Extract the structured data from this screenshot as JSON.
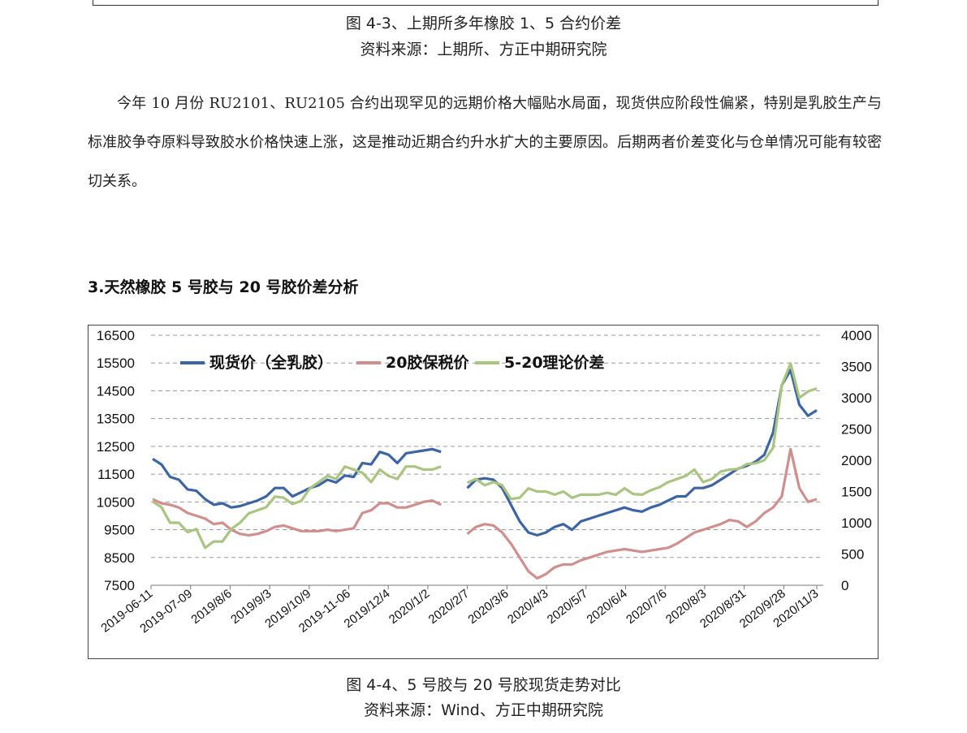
{
  "prev_figure": {
    "caption": "图  4-3、上期所多年橡胶 1、5 合约价差",
    "source": "资料来源：上期所、方正中期研究院"
  },
  "paragraph": "今年 10 月份 RU2101、RU2105 合约出现罕见的远期价格大幅贴水局面，现货供应阶段性偏紧，特别是乳胶生产与标准胶争夺原料导致胶水价格快速上涨，这是推动近期合约升水扩大的主要原因。后期两者价差变化与仓单情况可能有较密切关系。",
  "section_title": "3.天然橡胶 5 号胶与 20 号胶价差分析",
  "figure": {
    "caption": "图 4-4、5 号胶与 20 号胶现货走势对比",
    "source": "资料来源：Wind、方正中期研究院"
  },
  "chart_data": {
    "type": "line",
    "title": "",
    "y_left": {
      "min": 7500,
      "max": 16500,
      "ticks": [
        7500,
        8500,
        9500,
        10500,
        11500,
        12500,
        13500,
        14500,
        15500,
        16500
      ]
    },
    "y_right": {
      "min": 0,
      "max": 4000,
      "ticks": [
        0,
        500,
        1000,
        1500,
        2000,
        2500,
        3000,
        3500,
        4000
      ]
    },
    "x_ticks": [
      "2019-06-11",
      "2019-07-09",
      "2019/8/6",
      "2019/9/3",
      "2019/10/9",
      "2019-11-06",
      "2019/12/4",
      "2020/1/2",
      "2020/2/7",
      "2020/3/6",
      "2020/4/3",
      "2020/5/7",
      "2020/6/4",
      "2020/7/6",
      "2020/8/3",
      "2020/8/31",
      "2020/9/28",
      "2020/11/3"
    ],
    "legend_position": "top-left",
    "grid": "horizontal dashed",
    "series": [
      {
        "name": "现货价（全乳胶）",
        "axis": "left",
        "color": "#3b65a5",
        "values": [
          12050,
          11850,
          11400,
          11300,
          10950,
          10900,
          10600,
          10400,
          10450,
          10300,
          10350,
          10450,
          10550,
          10700,
          11000,
          11000,
          10700,
          10850,
          11000,
          11100,
          11300,
          11200,
          11450,
          11400,
          11900,
          11850,
          12300,
          12200,
          11900,
          12250,
          12300,
          12350,
          12400,
          12300,
          null,
          null,
          11000,
          11300,
          11350,
          11300,
          11000,
          10400,
          9800,
          9400,
          9300,
          9400,
          9600,
          9700,
          9500,
          9800,
          9900,
          10000,
          10100,
          10200,
          10300,
          10200,
          10150,
          10300,
          10400,
          10550,
          10700,
          10700,
          11000,
          11000,
          11100,
          11300,
          11500,
          11700,
          11800,
          11950,
          12200,
          13000,
          14700,
          15250,
          14000,
          13600,
          13800
        ]
      },
      {
        "name": "20胶保税价",
        "axis": "left",
        "color": "#d08f8c",
        "values": [
          10600,
          10450,
          10400,
          10300,
          10100,
          10000,
          9900,
          9700,
          9750,
          9500,
          9350,
          9300,
          9350,
          9450,
          9600,
          9650,
          9550,
          9450,
          9450,
          9450,
          9500,
          9450,
          9500,
          9550,
          10100,
          10200,
          10450,
          10450,
          10300,
          10300,
          10400,
          10500,
          10550,
          10400,
          null,
          null,
          9350,
          9600,
          9700,
          9650,
          9400,
          9000,
          8500,
          8000,
          7750,
          7900,
          8150,
          8250,
          8250,
          8400,
          8500,
          8600,
          8700,
          8750,
          8800,
          8750,
          8700,
          8750,
          8800,
          8850,
          9000,
          9200,
          9400,
          9500,
          9600,
          9700,
          9850,
          9800,
          9600,
          9800,
          10100,
          10300,
          10700,
          12400,
          11000,
          10500,
          10600
        ]
      },
      {
        "name": "5-20理论价差",
        "axis": "right",
        "color": "#a9c57e",
        "values": [
          1340,
          1250,
          1000,
          1000,
          850,
          900,
          600,
          700,
          700,
          900,
          1000,
          1150,
          1200,
          1250,
          1420,
          1400,
          1300,
          1350,
          1550,
          1650,
          1750,
          1700,
          1900,
          1850,
          1800,
          1650,
          1850,
          1750,
          1700,
          1900,
          1900,
          1850,
          1850,
          1900,
          null,
          null,
          1640,
          1700,
          1600,
          1650,
          1600,
          1380,
          1400,
          1550,
          1500,
          1500,
          1450,
          1500,
          1400,
          1450,
          1450,
          1450,
          1480,
          1450,
          1550,
          1460,
          1450,
          1520,
          1570,
          1650,
          1700,
          1750,
          1850,
          1650,
          1700,
          1820,
          1850,
          1860,
          1940,
          1950,
          2000,
          2200,
          3200,
          3550,
          3000,
          3100,
          3150
        ]
      }
    ]
  }
}
